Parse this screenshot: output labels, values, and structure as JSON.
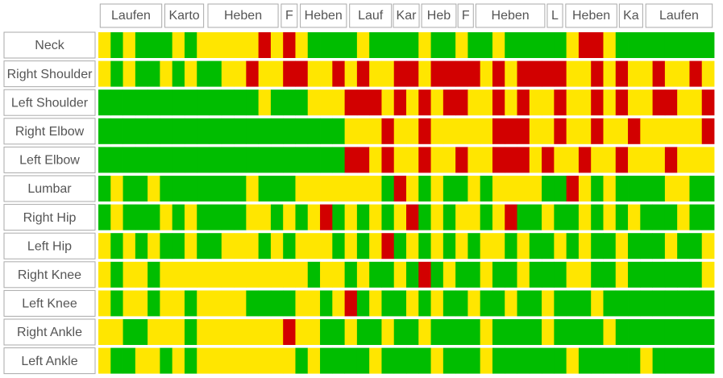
{
  "chart_data": {
    "type": "heatstrip",
    "xlim": [
      0,
      100
    ],
    "level_colors": [
      "#00bd00",
      "#ffe600",
      "#d20000"
    ],
    "activities": [
      {
        "label": "Laufen",
        "start": 0.3,
        "end": 10.3
      },
      {
        "label": "Karto",
        "start": 10.8,
        "end": 17.1
      },
      {
        "label": "Heben",
        "start": 17.8,
        "end": 29.2
      },
      {
        "label": "F",
        "start": 29.7,
        "end": 32.3
      },
      {
        "label": "Heben",
        "start": 32.8,
        "end": 40.3
      },
      {
        "label": "Lauf",
        "start": 40.8,
        "end": 47.6
      },
      {
        "label": "Kar",
        "start": 47.9,
        "end": 52.1
      },
      {
        "label": "Heb",
        "start": 52.5,
        "end": 58.1
      },
      {
        "label": "F",
        "start": 58.4,
        "end": 60.9
      },
      {
        "label": "Heben",
        "start": 61.3,
        "end": 72.5
      },
      {
        "label": "L",
        "start": 72.9,
        "end": 75.4
      },
      {
        "label": "Heben",
        "start": 75.9,
        "end": 84.2
      },
      {
        "label": "Ka",
        "start": 84.6,
        "end": 88.4
      },
      {
        "label": "Laufen",
        "start": 88.9,
        "end": 99.7
      }
    ],
    "rows": [
      {
        "name": "Neck",
        "values": [
          1,
          0,
          1,
          0,
          0,
          0,
          1,
          0,
          1,
          1,
          1,
          1,
          1,
          2,
          1,
          2,
          1,
          0,
          0,
          0,
          0,
          1,
          0,
          0,
          0,
          0,
          1,
          0,
          0,
          1,
          0,
          0,
          1,
          0,
          0,
          0,
          0,
          0,
          1,
          2,
          2,
          1,
          0,
          0,
          0,
          0,
          0,
          0,
          0,
          0
        ]
      },
      {
        "name": "Right Shoulder",
        "values": [
          1,
          0,
          1,
          0,
          0,
          1,
          0,
          1,
          0,
          0,
          1,
          1,
          2,
          1,
          1,
          2,
          2,
          1,
          1,
          2,
          1,
          2,
          1,
          1,
          2,
          2,
          1,
          2,
          2,
          2,
          2,
          1,
          2,
          1,
          2,
          2,
          2,
          2,
          1,
          1,
          2,
          1,
          2,
          1,
          1,
          2,
          1,
          1,
          2,
          1
        ]
      },
      {
        "name": "Left Shoulder",
        "values": [
          0,
          0,
          0,
          0,
          0,
          0,
          0,
          0,
          0,
          0,
          0,
          0,
          0,
          1,
          0,
          0,
          0,
          1,
          1,
          1,
          2,
          2,
          2,
          1,
          2,
          1,
          2,
          1,
          2,
          2,
          1,
          1,
          2,
          1,
          2,
          1,
          1,
          2,
          1,
          1,
          2,
          1,
          2,
          1,
          1,
          2,
          2,
          1,
          1,
          2
        ]
      },
      {
        "name": "Right Elbow",
        "values": [
          0,
          0,
          0,
          0,
          0,
          0,
          0,
          0,
          0,
          0,
          0,
          0,
          0,
          0,
          0,
          0,
          0,
          0,
          0,
          0,
          1,
          1,
          1,
          2,
          1,
          1,
          2,
          1,
          1,
          1,
          1,
          1,
          2,
          2,
          2,
          1,
          1,
          2,
          1,
          1,
          2,
          1,
          1,
          2,
          1,
          1,
          1,
          1,
          1,
          2
        ]
      },
      {
        "name": "Left Elbow",
        "values": [
          0,
          0,
          0,
          0,
          0,
          0,
          0,
          0,
          0,
          0,
          0,
          0,
          0,
          0,
          0,
          0,
          0,
          0,
          0,
          0,
          2,
          2,
          1,
          2,
          1,
          1,
          2,
          1,
          1,
          2,
          1,
          1,
          2,
          2,
          2,
          1,
          2,
          1,
          1,
          2,
          1,
          1,
          2,
          1,
          1,
          1,
          2,
          1,
          1,
          1
        ]
      },
      {
        "name": "Lumbar",
        "values": [
          0,
          1,
          0,
          0,
          1,
          0,
          0,
          0,
          0,
          0,
          0,
          0,
          1,
          0,
          0,
          0,
          1,
          1,
          1,
          1,
          1,
          1,
          1,
          0,
          2,
          1,
          0,
          1,
          0,
          0,
          1,
          0,
          1,
          1,
          1,
          1,
          0,
          0,
          2,
          1,
          0,
          1,
          0,
          0,
          0,
          0,
          1,
          1,
          0,
          0
        ]
      },
      {
        "name": "Right Hip",
        "values": [
          0,
          1,
          0,
          0,
          0,
          1,
          0,
          1,
          0,
          0,
          0,
          0,
          1,
          1,
          0,
          1,
          0,
          1,
          2,
          0,
          1,
          0,
          1,
          0,
          1,
          2,
          0,
          1,
          0,
          1,
          1,
          0,
          1,
          2,
          0,
          0,
          1,
          0,
          0,
          1,
          0,
          1,
          0,
          1,
          0,
          0,
          0,
          1,
          0,
          0
        ]
      },
      {
        "name": "Left Hip",
        "values": [
          1,
          0,
          1,
          0,
          1,
          0,
          0,
          1,
          0,
          0,
          1,
          1,
          1,
          0,
          1,
          0,
          1,
          1,
          1,
          0,
          1,
          0,
          1,
          2,
          0,
          1,
          0,
          1,
          0,
          1,
          0,
          1,
          1,
          0,
          1,
          0,
          0,
          1,
          0,
          1,
          0,
          0,
          1,
          0,
          0,
          0,
          1,
          0,
          0,
          1
        ]
      },
      {
        "name": "Right Knee",
        "values": [
          1,
          0,
          1,
          1,
          0,
          1,
          1,
          1,
          1,
          1,
          1,
          1,
          1,
          1,
          1,
          1,
          1,
          0,
          1,
          1,
          0,
          1,
          0,
          0,
          1,
          0,
          2,
          0,
          1,
          0,
          0,
          1,
          0,
          0,
          1,
          0,
          0,
          0,
          1,
          1,
          0,
          0,
          1,
          0,
          0,
          0,
          0,
          0,
          0,
          1
        ]
      },
      {
        "name": "Left Knee",
        "values": [
          1,
          0,
          1,
          1,
          0,
          1,
          1,
          0,
          1,
          1,
          1,
          1,
          0,
          0,
          0,
          0,
          1,
          1,
          0,
          1,
          2,
          0,
          1,
          0,
          0,
          1,
          0,
          1,
          0,
          0,
          1,
          0,
          0,
          1,
          0,
          0,
          1,
          0,
          0,
          0,
          1,
          0,
          0,
          0,
          0,
          0,
          0,
          0,
          0,
          0
        ]
      },
      {
        "name": "Right Ankle",
        "values": [
          1,
          1,
          0,
          0,
          1,
          1,
          1,
          0,
          1,
          1,
          1,
          1,
          1,
          1,
          1,
          2,
          1,
          1,
          0,
          0,
          1,
          0,
          0,
          1,
          0,
          0,
          1,
          0,
          0,
          0,
          0,
          1,
          0,
          0,
          0,
          0,
          1,
          0,
          0,
          0,
          0,
          1,
          0,
          0,
          0,
          0,
          0,
          0,
          0,
          0
        ]
      },
      {
        "name": "Left Ankle",
        "values": [
          1,
          0,
          0,
          1,
          1,
          0,
          1,
          0,
          1,
          1,
          1,
          1,
          1,
          1,
          1,
          1,
          0,
          1,
          0,
          0,
          0,
          0,
          1,
          0,
          0,
          0,
          0,
          1,
          0,
          0,
          0,
          1,
          0,
          0,
          0,
          0,
          0,
          0,
          1,
          0,
          0,
          0,
          0,
          0,
          1,
          0,
          0,
          0,
          0,
          0
        ]
      }
    ]
  }
}
